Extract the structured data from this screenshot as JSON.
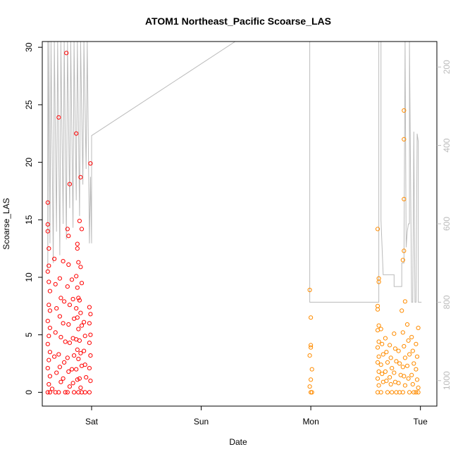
{
  "chart_data": {
    "type": "scatter",
    "title": "ATOM1 Northeast_Pacific Scoarse_LAS",
    "xlabel": "Date",
    "ylabel": "Scoarse_LAS",
    "x_ticks": [
      "Sat",
      "Sun",
      "Mon",
      "Tue"
    ],
    "x_tick_values": [
      1,
      2,
      3,
      4
    ],
    "xlim": [
      0.55,
      4.15
    ],
    "ylim": [
      -1.2,
      30.5
    ],
    "y_ticks": [
      0,
      5,
      10,
      15,
      20,
      25,
      30
    ],
    "y_ticks_right": [
      200,
      400,
      600,
      800,
      1000
    ],
    "ylim_right": [
      1065,
      135
    ],
    "y_right_reversed": true,
    "grid": false,
    "legend": "none",
    "colors": {
      "series_early": "#ff0000",
      "series_late": "#ff8c00",
      "profile_line": "#bbbbbb",
      "right_axis": "#bbbbbb"
    },
    "series": [
      {
        "color": "#ff0000",
        "points": [
          [
            0.6,
            16.5
          ],
          [
            0.6,
            14.6
          ],
          [
            0.6,
            14.0
          ],
          [
            0.61,
            12.5
          ],
          [
            0.61,
            11.0
          ],
          [
            0.6,
            10.5
          ],
          [
            0.61,
            9.6
          ],
          [
            0.62,
            8.8
          ],
          [
            0.61,
            7.6
          ],
          [
            0.62,
            7.1
          ],
          [
            0.6,
            6.2
          ],
          [
            0.62,
            5.6
          ],
          [
            0.61,
            4.9
          ],
          [
            0.6,
            4.2
          ],
          [
            0.62,
            3.5
          ],
          [
            0.61,
            2.8
          ],
          [
            0.6,
            2.1
          ],
          [
            0.62,
            1.4
          ],
          [
            0.61,
            0.7
          ],
          [
            0.6,
            0
          ],
          [
            0.62,
            0
          ],
          [
            0.64,
            0.3
          ],
          [
            0.66,
            11.6
          ],
          [
            0.67,
            9.4
          ],
          [
            0.68,
            7.3
          ],
          [
            0.67,
            5.2
          ],
          [
            0.66,
            3.1
          ],
          [
            0.68,
            1.7
          ],
          [
            0.67,
            0
          ],
          [
            0.7,
            23.9
          ],
          [
            0.71,
            9.9
          ],
          [
            0.72,
            8.2
          ],
          [
            0.71,
            6.6
          ],
          [
            0.72,
            4.8
          ],
          [
            0.7,
            3.3
          ],
          [
            0.71,
            2.2
          ],
          [
            0.72,
            0.9
          ],
          [
            0.7,
            0
          ],
          [
            0.74,
            11.4
          ],
          [
            0.75,
            7.9
          ],
          [
            0.74,
            6.0
          ],
          [
            0.76,
            4.4
          ],
          [
            0.75,
            2.6
          ],
          [
            0.74,
            1.2
          ],
          [
            0.76,
            0
          ],
          [
            0.77,
            29.5
          ],
          [
            0.78,
            14.2
          ],
          [
            0.79,
            13.6
          ],
          [
            0.8,
            18.1
          ],
          [
            0.79,
            11.1
          ],
          [
            0.78,
            9.2
          ],
          [
            0.8,
            7.6
          ],
          [
            0.79,
            5.9
          ],
          [
            0.8,
            4.3
          ],
          [
            0.78,
            3.0
          ],
          [
            0.79,
            1.8
          ],
          [
            0.8,
            0.5
          ],
          [
            0.78,
            0
          ],
          [
            0.82,
            9.8
          ],
          [
            0.83,
            8.1
          ],
          [
            0.84,
            6.4
          ],
          [
            0.83,
            4.7
          ],
          [
            0.84,
            3.2
          ],
          [
            0.82,
            2.0
          ],
          [
            0.83,
            0.8
          ],
          [
            0.84,
            0
          ],
          [
            0.86,
            22.5
          ],
          [
            0.87,
            12.9
          ],
          [
            0.87,
            12.5
          ],
          [
            0.88,
            11.3
          ],
          [
            0.86,
            10.1
          ],
          [
            0.87,
            9.1
          ],
          [
            0.88,
            8.2
          ],
          [
            0.86,
            7.3
          ],
          [
            0.87,
            6.5
          ],
          [
            0.88,
            5.5
          ],
          [
            0.86,
            4.6
          ],
          [
            0.87,
            3.7
          ],
          [
            0.88,
            2.9
          ],
          [
            0.86,
            2.0
          ],
          [
            0.87,
            1.1
          ],
          [
            0.88,
            0
          ],
          [
            0.89,
            14.9
          ],
          [
            0.9,
            18.7
          ],
          [
            0.91,
            14.2
          ],
          [
            0.9,
            10.9
          ],
          [
            0.91,
            9.5
          ],
          [
            0.89,
            8.0
          ],
          [
            0.9,
            6.9
          ],
          [
            0.91,
            5.8
          ],
          [
            0.89,
            4.5
          ],
          [
            0.9,
            3.4
          ],
          [
            0.91,
            2.3
          ],
          [
            0.89,
            1.2
          ],
          [
            0.9,
            0.4
          ],
          [
            0.91,
            0
          ],
          [
            0.93,
            6.1
          ],
          [
            0.94,
            4.9
          ],
          [
            0.93,
            3.6
          ],
          [
            0.94,
            2.4
          ],
          [
            0.95,
            1.3
          ],
          [
            0.94,
            0
          ],
          [
            0.99,
            19.9
          ],
          [
            0.98,
            7.4
          ],
          [
            0.99,
            6.8
          ],
          [
            0.98,
            6.0
          ],
          [
            0.99,
            5.0
          ],
          [
            0.98,
            4.3
          ],
          [
            0.99,
            3.2
          ],
          [
            0.98,
            2.1
          ],
          [
            0.99,
            1.0
          ],
          [
            0.98,
            0
          ]
        ]
      },
      {
        "color": "#ff8c00",
        "points": [
          [
            2.99,
            8.9
          ],
          [
            3.0,
            6.5
          ],
          [
            3.0,
            4.1
          ],
          [
            3.0,
            3.9
          ],
          [
            2.99,
            3.2
          ],
          [
            3.01,
            2.0
          ],
          [
            3.0,
            1.1
          ],
          [
            2.99,
            0.5
          ],
          [
            3.0,
            0
          ],
          [
            3.01,
            0
          ],
          [
            3.61,
            14.2
          ],
          [
            3.62,
            9.9
          ],
          [
            3.62,
            9.6
          ],
          [
            3.61,
            7.5
          ],
          [
            3.61,
            7.2
          ],
          [
            3.62,
            5.8
          ],
          [
            3.61,
            5.4
          ],
          [
            3.62,
            4.4
          ],
          [
            3.61,
            3.9
          ],
          [
            3.62,
            3.1
          ],
          [
            3.61,
            2.6
          ],
          [
            3.62,
            1.8
          ],
          [
            3.61,
            1.2
          ],
          [
            3.62,
            0.6
          ],
          [
            3.61,
            0
          ],
          [
            3.64,
            5.5
          ],
          [
            3.65,
            4.2
          ],
          [
            3.66,
            3.3
          ],
          [
            3.64,
            2.4
          ],
          [
            3.65,
            1.6
          ],
          [
            3.66,
            0.9
          ],
          [
            3.64,
            0
          ],
          [
            3.68,
            4.7
          ],
          [
            3.69,
            3.5
          ],
          [
            3.7,
            2.6
          ],
          [
            3.68,
            1.8
          ],
          [
            3.69,
            1.0
          ],
          [
            3.7,
            0
          ],
          [
            3.72,
            4.1
          ],
          [
            3.73,
            3.0
          ],
          [
            3.74,
            2.1
          ],
          [
            3.72,
            1.3
          ],
          [
            3.73,
            0.7
          ],
          [
            3.74,
            0
          ],
          [
            3.76,
            5.1
          ],
          [
            3.77,
            3.8
          ],
          [
            3.78,
            2.7
          ],
          [
            3.76,
            1.7
          ],
          [
            3.77,
            0.9
          ],
          [
            3.78,
            0
          ],
          [
            3.8,
            3.6
          ],
          [
            3.81,
            2.5
          ],
          [
            3.82,
            1.5
          ],
          [
            3.8,
            0.8
          ],
          [
            3.81,
            0
          ],
          [
            3.83,
            7.1
          ],
          [
            3.84,
            11.5
          ],
          [
            3.85,
            12.3
          ],
          [
            3.85,
            16.8
          ],
          [
            3.85,
            22.0
          ],
          [
            3.85,
            24.5
          ],
          [
            3.86,
            7.9
          ],
          [
            3.84,
            5.2
          ],
          [
            3.85,
            4.0
          ],
          [
            3.86,
            3.0
          ],
          [
            3.84,
            2.2
          ],
          [
            3.85,
            1.4
          ],
          [
            3.86,
            0.6
          ],
          [
            3.84,
            0
          ],
          [
            3.88,
            5.9
          ],
          [
            3.89,
            4.5
          ],
          [
            3.9,
            3.3
          ],
          [
            3.88,
            2.3
          ],
          [
            3.89,
            1.2
          ],
          [
            3.9,
            0
          ],
          [
            3.92,
            4.8
          ],
          [
            3.93,
            3.6
          ],
          [
            3.94,
            2.5
          ],
          [
            3.92,
            1.5
          ],
          [
            3.93,
            0.7
          ],
          [
            3.94,
            0
          ],
          [
            3.96,
            4.2
          ],
          [
            3.97,
            3.1
          ],
          [
            3.98,
            5.6
          ],
          [
            3.96,
            2.0
          ],
          [
            3.97,
            1.1
          ],
          [
            3.98,
            0.4
          ],
          [
            3.96,
            0
          ],
          [
            3.98,
            0
          ]
        ]
      }
    ],
    "profile_line": [
      [
        0.6,
        135
      ],
      [
        0.6,
        720
      ],
      [
        0.61,
        135
      ],
      [
        0.62,
        650
      ],
      [
        0.63,
        135
      ],
      [
        0.65,
        700
      ],
      [
        0.66,
        135
      ],
      [
        0.68,
        620
      ],
      [
        0.69,
        135
      ],
      [
        0.71,
        680
      ],
      [
        0.72,
        135
      ],
      [
        0.74,
        600
      ],
      [
        0.75,
        135
      ],
      [
        0.77,
        640
      ],
      [
        0.78,
        135
      ],
      [
        0.8,
        560
      ],
      [
        0.81,
        135
      ],
      [
        0.83,
        610
      ],
      [
        0.84,
        135
      ],
      [
        0.86,
        540
      ],
      [
        0.87,
        135
      ],
      [
        0.89,
        580
      ],
      [
        0.9,
        135
      ],
      [
        0.92,
        500
      ],
      [
        0.93,
        135
      ],
      [
        0.95,
        460
      ],
      [
        0.96,
        135
      ],
      [
        0.98,
        650
      ],
      [
        0.99,
        480
      ],
      [
        1.0,
        650
      ],
      [
        1.0,
        375
      ],
      [
        2.31,
        135
      ],
      [
        2.99,
        135
      ],
      [
        2.99,
        420
      ],
      [
        2.99,
        770
      ],
      [
        2.99,
        800
      ],
      [
        3.04,
        800
      ],
      [
        3.62,
        800
      ],
      [
        3.62,
        740
      ],
      [
        3.62,
        135
      ],
      [
        3.64,
        135
      ],
      [
        3.64,
        590
      ],
      [
        3.66,
        730
      ],
      [
        3.76,
        730
      ],
      [
        3.76,
        760
      ],
      [
        3.83,
        760
      ],
      [
        3.83,
        700
      ],
      [
        3.85,
        700
      ],
      [
        3.86,
        135
      ],
      [
        3.87,
        660
      ],
      [
        3.88,
        620
      ],
      [
        3.89,
        600
      ],
      [
        3.9,
        600
      ],
      [
        3.9,
        135
      ],
      [
        3.92,
        800
      ],
      [
        3.93,
        800
      ],
      [
        3.94,
        365
      ],
      [
        3.95,
        800
      ],
      [
        3.96,
        800
      ],
      [
        3.97,
        370
      ],
      [
        3.98,
        390
      ],
      [
        3.98,
        800
      ],
      [
        4.01,
        800
      ]
    ]
  }
}
